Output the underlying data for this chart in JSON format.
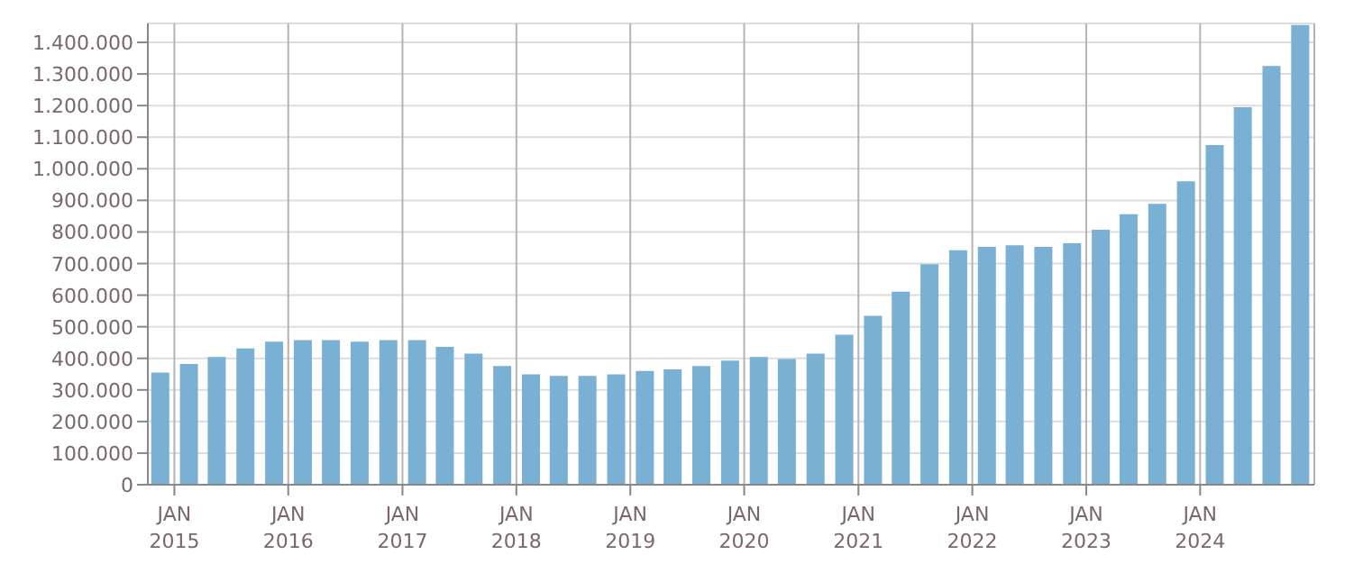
{
  "chart_data": {
    "type": "bar",
    "x": [
      "2014-11-15",
      "2015-02-15",
      "2015-05-15",
      "2015-08-15",
      "2015-11-15",
      "2016-02-15",
      "2016-05-15",
      "2016-08-15",
      "2016-11-15",
      "2017-02-15",
      "2017-05-15",
      "2017-08-15",
      "2017-11-15",
      "2018-02-15",
      "2018-05-15",
      "2018-08-15",
      "2018-11-15",
      "2019-02-15",
      "2019-05-15",
      "2019-08-15",
      "2019-11-15",
      "2020-02-15",
      "2020-05-15",
      "2020-08-15",
      "2020-11-15",
      "2021-02-15",
      "2021-05-15",
      "2021-08-15",
      "2021-11-15",
      "2022-02-15",
      "2022-05-15",
      "2022-08-15",
      "2022-11-15",
      "2023-02-15",
      "2023-05-15",
      "2023-08-15",
      "2023-11-15",
      "2024-02-15",
      "2024-05-15",
      "2024-08-15",
      "2024-11-15"
    ],
    "values": [
      355000,
      382000,
      404000,
      431000,
      453000,
      458000,
      458000,
      453000,
      458000,
      458000,
      436000,
      415000,
      376000,
      349000,
      344000,
      344000,
      349000,
      360000,
      365000,
      376000,
      393000,
      404000,
      398000,
      415000,
      475000,
      535000,
      611000,
      698000,
      742000,
      753000,
      758000,
      753000,
      764000,
      807000,
      856000,
      889000,
      960000,
      1075000,
      1195000,
      1325000,
      1455000
    ],
    "color": "#79b0d3",
    "xlim": [
      "2014-10-08",
      "2025-01-01"
    ],
    "xticks": [
      {
        "value": "2015-01-01",
        "label": "JAN 2015"
      },
      {
        "value": "2016-01-01",
        "label": "JAN 2016"
      },
      {
        "value": "2017-01-01",
        "label": "JAN 2017"
      },
      {
        "value": "2018-01-01",
        "label": "JAN 2018"
      },
      {
        "value": "2019-01-01",
        "label": "JAN 2019"
      },
      {
        "value": "2020-01-01",
        "label": "JAN 2020"
      },
      {
        "value": "2021-01-01",
        "label": "JAN 2021"
      },
      {
        "value": "2022-01-01",
        "label": "JAN 2022"
      },
      {
        "value": "2023-01-01",
        "label": "JAN 2023"
      },
      {
        "value": "2024-01-01",
        "label": "JAN 2024"
      }
    ],
    "ylim": [
      0,
      1460000
    ],
    "yticks": [
      {
        "value": 0,
        "label": "0"
      },
      {
        "value": 100000,
        "label": "100.000"
      },
      {
        "value": 200000,
        "label": "200.000"
      },
      {
        "value": 300000,
        "label": "300.000"
      },
      {
        "value": 400000,
        "label": "400.000"
      },
      {
        "value": 500000,
        "label": "500.000"
      },
      {
        "value": 600000,
        "label": "600.000"
      },
      {
        "value": 700000,
        "label": "700.000"
      },
      {
        "value": 800000,
        "label": "800.000"
      },
      {
        "value": 900000,
        "label": "900.000"
      },
      {
        "value": 1000000,
        "label": "1.000.000"
      },
      {
        "value": 1100000,
        "label": "1.100.000"
      },
      {
        "value": 1200000,
        "label": "1.200.000"
      },
      {
        "value": 1300000,
        "label": "1.300.000"
      },
      {
        "value": 1400000,
        "label": "1.400.000"
      }
    ],
    "grid": true
  }
}
